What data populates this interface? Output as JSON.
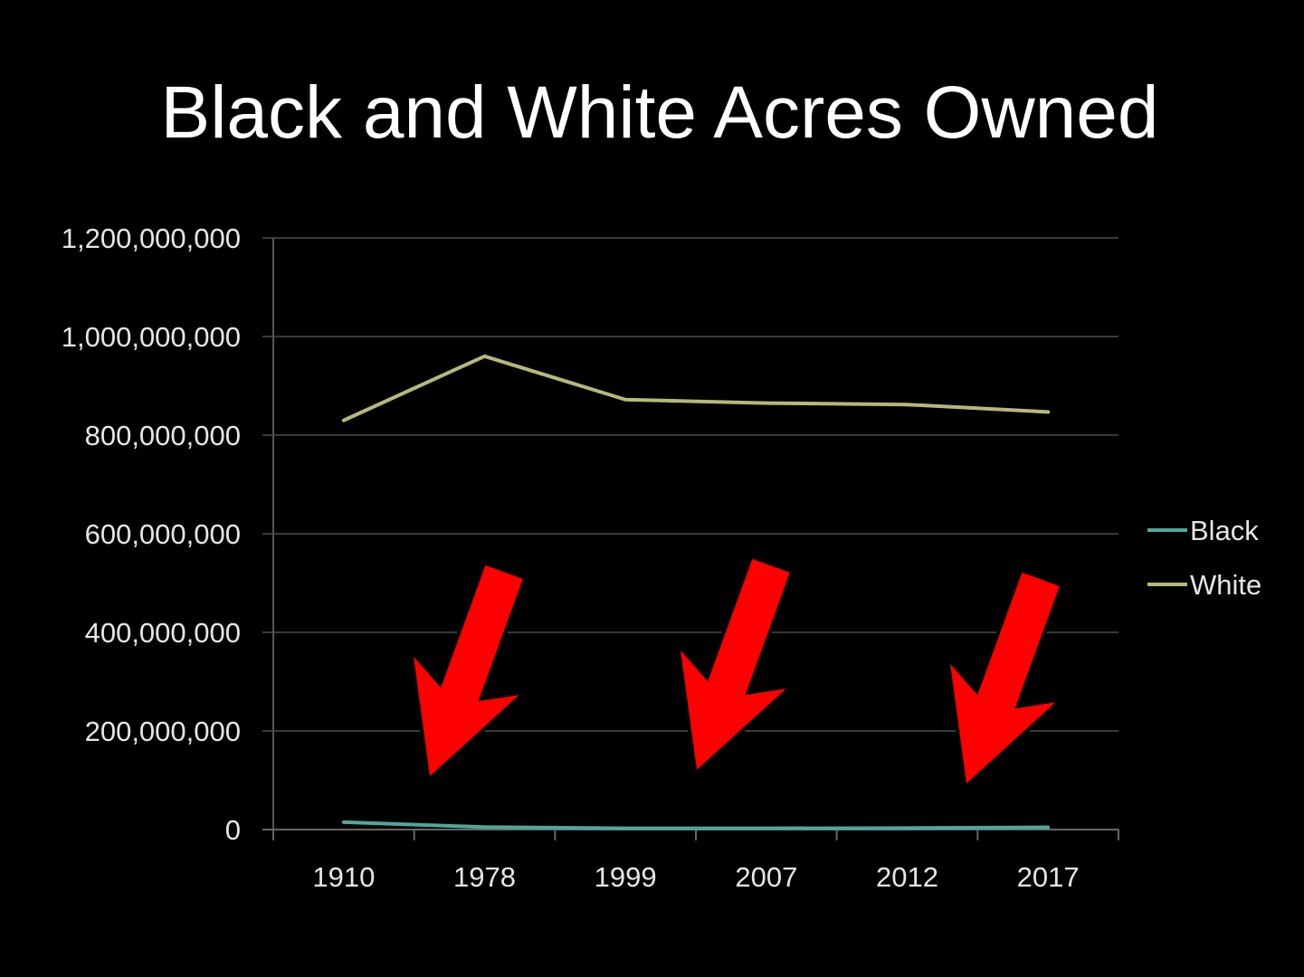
{
  "chart_data": {
    "type": "line",
    "title": "Black and White Acres Owned",
    "categories": [
      "1910",
      "1978",
      "1999",
      "2007",
      "2012",
      "2017"
    ],
    "series": [
      {
        "name": "Black",
        "values": [
          15000000,
          5000000,
          2500000,
          2500000,
          3000000,
          4500000
        ]
      },
      {
        "name": "White",
        "values": [
          830000000,
          960000000,
          872000000,
          865000000,
          862000000,
          847000000
        ]
      }
    ],
    "yticks": [
      "0",
      "200,000,000",
      "400,000,000",
      "600,000,000",
      "800,000,000",
      "1,000,000,000",
      "1,200,000,000"
    ],
    "ylim": [
      0,
      1200000000
    ],
    "grid": true,
    "legend": "right",
    "colors": {
      "Black": "#4fa89a",
      "White": "#b7b87a",
      "arrows": "#ff0000",
      "grid": "#3a3a3a"
    },
    "annotations": [
      "red-arrow",
      "red-arrow",
      "red-arrow"
    ]
  }
}
